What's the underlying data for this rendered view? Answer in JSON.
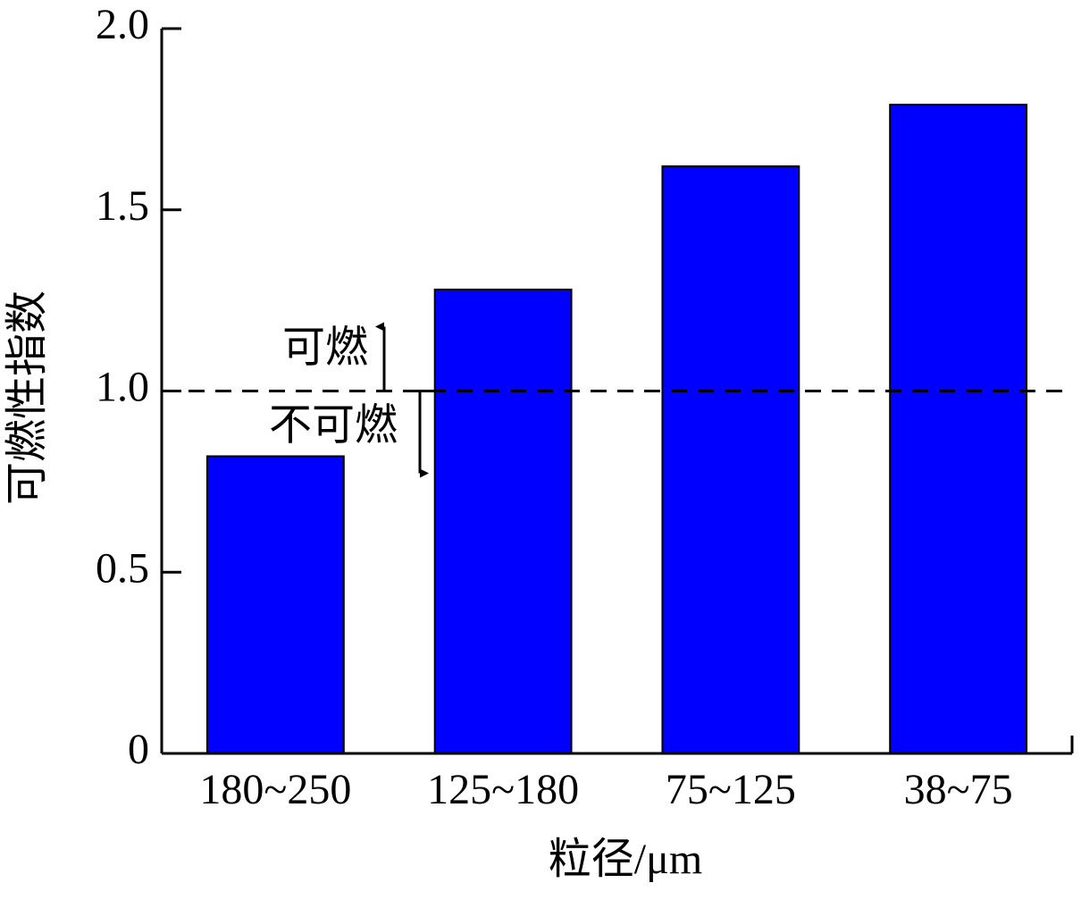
{
  "chart_data": {
    "type": "bar",
    "y_label": "可燃性指数",
    "x_label": "粒径/μm",
    "categories": [
      "180~250",
      "125~180",
      "75~125",
      "38~75"
    ],
    "values": [
      0.82,
      1.28,
      1.62,
      1.79
    ],
    "color": "#0000ff",
    "ylim": [
      0,
      2
    ],
    "yticks": [
      0,
      0.5,
      {
        "value": 1,
        "label": "1.0"
      },
      1.5,
      {
        "value": 2,
        "label": "2.0"
      }
    ],
    "threshold": 1,
    "annotations": {
      "above": "可燃",
      "below": "不可燃"
    }
  }
}
